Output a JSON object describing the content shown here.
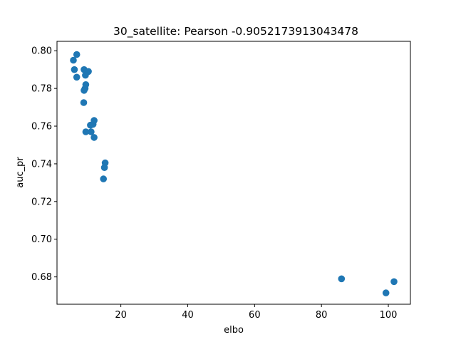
{
  "chart_data": {
    "type": "scatter",
    "title": "30_satellite: Pearson -0.9052173913043478",
    "xlabel": "elbo",
    "ylabel": "auc_pr",
    "xlim": [
      0.9,
      106.6
    ],
    "ylim": [
      0.6655,
      0.805
    ],
    "xticks": [
      20,
      40,
      60,
      80,
      100
    ],
    "yticks": [
      0.68,
      0.7,
      0.72,
      0.74,
      0.76,
      0.78,
      0.8
    ],
    "xtick_labels": [
      "20",
      "40",
      "60",
      "80",
      "100"
    ],
    "ytick_labels": [
      "0.68",
      "0.70",
      "0.72",
      "0.74",
      "0.76",
      "0.78",
      "0.80"
    ],
    "grid": false,
    "legend": "none",
    "marker_color": "#1f77b4",
    "points": [
      {
        "x": 6.8,
        "y": 0.798
      },
      {
        "x": 5.8,
        "y": 0.795
      },
      {
        "x": 6.1,
        "y": 0.79
      },
      {
        "x": 6.8,
        "y": 0.786
      },
      {
        "x": 9.0,
        "y": 0.79
      },
      {
        "x": 10.3,
        "y": 0.789
      },
      {
        "x": 9.4,
        "y": 0.787
      },
      {
        "x": 9.5,
        "y": 0.782
      },
      {
        "x": 9.3,
        "y": 0.78
      },
      {
        "x": 9.0,
        "y": 0.779
      },
      {
        "x": 8.9,
        "y": 0.7725
      },
      {
        "x": 12.0,
        "y": 0.763
      },
      {
        "x": 11.7,
        "y": 0.761
      },
      {
        "x": 10.9,
        "y": 0.7605
      },
      {
        "x": 9.5,
        "y": 0.757
      },
      {
        "x": 11.1,
        "y": 0.757
      },
      {
        "x": 12.0,
        "y": 0.754
      },
      {
        "x": 15.3,
        "y": 0.7405
      },
      {
        "x": 15.1,
        "y": 0.738
      },
      {
        "x": 14.8,
        "y": 0.732
      },
      {
        "x": 86.0,
        "y": 0.679
      },
      {
        "x": 101.7,
        "y": 0.6775
      },
      {
        "x": 99.3,
        "y": 0.6715
      }
    ]
  }
}
